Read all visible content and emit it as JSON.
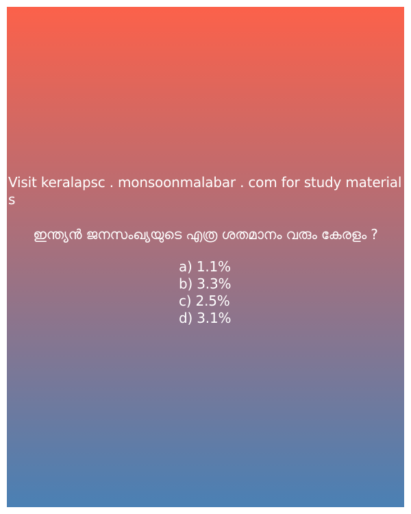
{
  "card": {
    "gradient_top": "#fc614a",
    "gradient_bottom": "#4a80b4",
    "text_color": "#ffffff",
    "promo_text": "Visit keralapsc . monsoonmalabar . com for study materials",
    "question": "ഇന്ത്യൻ ജനസംഖ്യയുടെ എത്ര ശതമാനം വരും കേരളം ?",
    "options": [
      "a) 1.1%",
      "b) 3.3%",
      "c) 2.5%",
      "d) 3.1%"
    ]
  }
}
